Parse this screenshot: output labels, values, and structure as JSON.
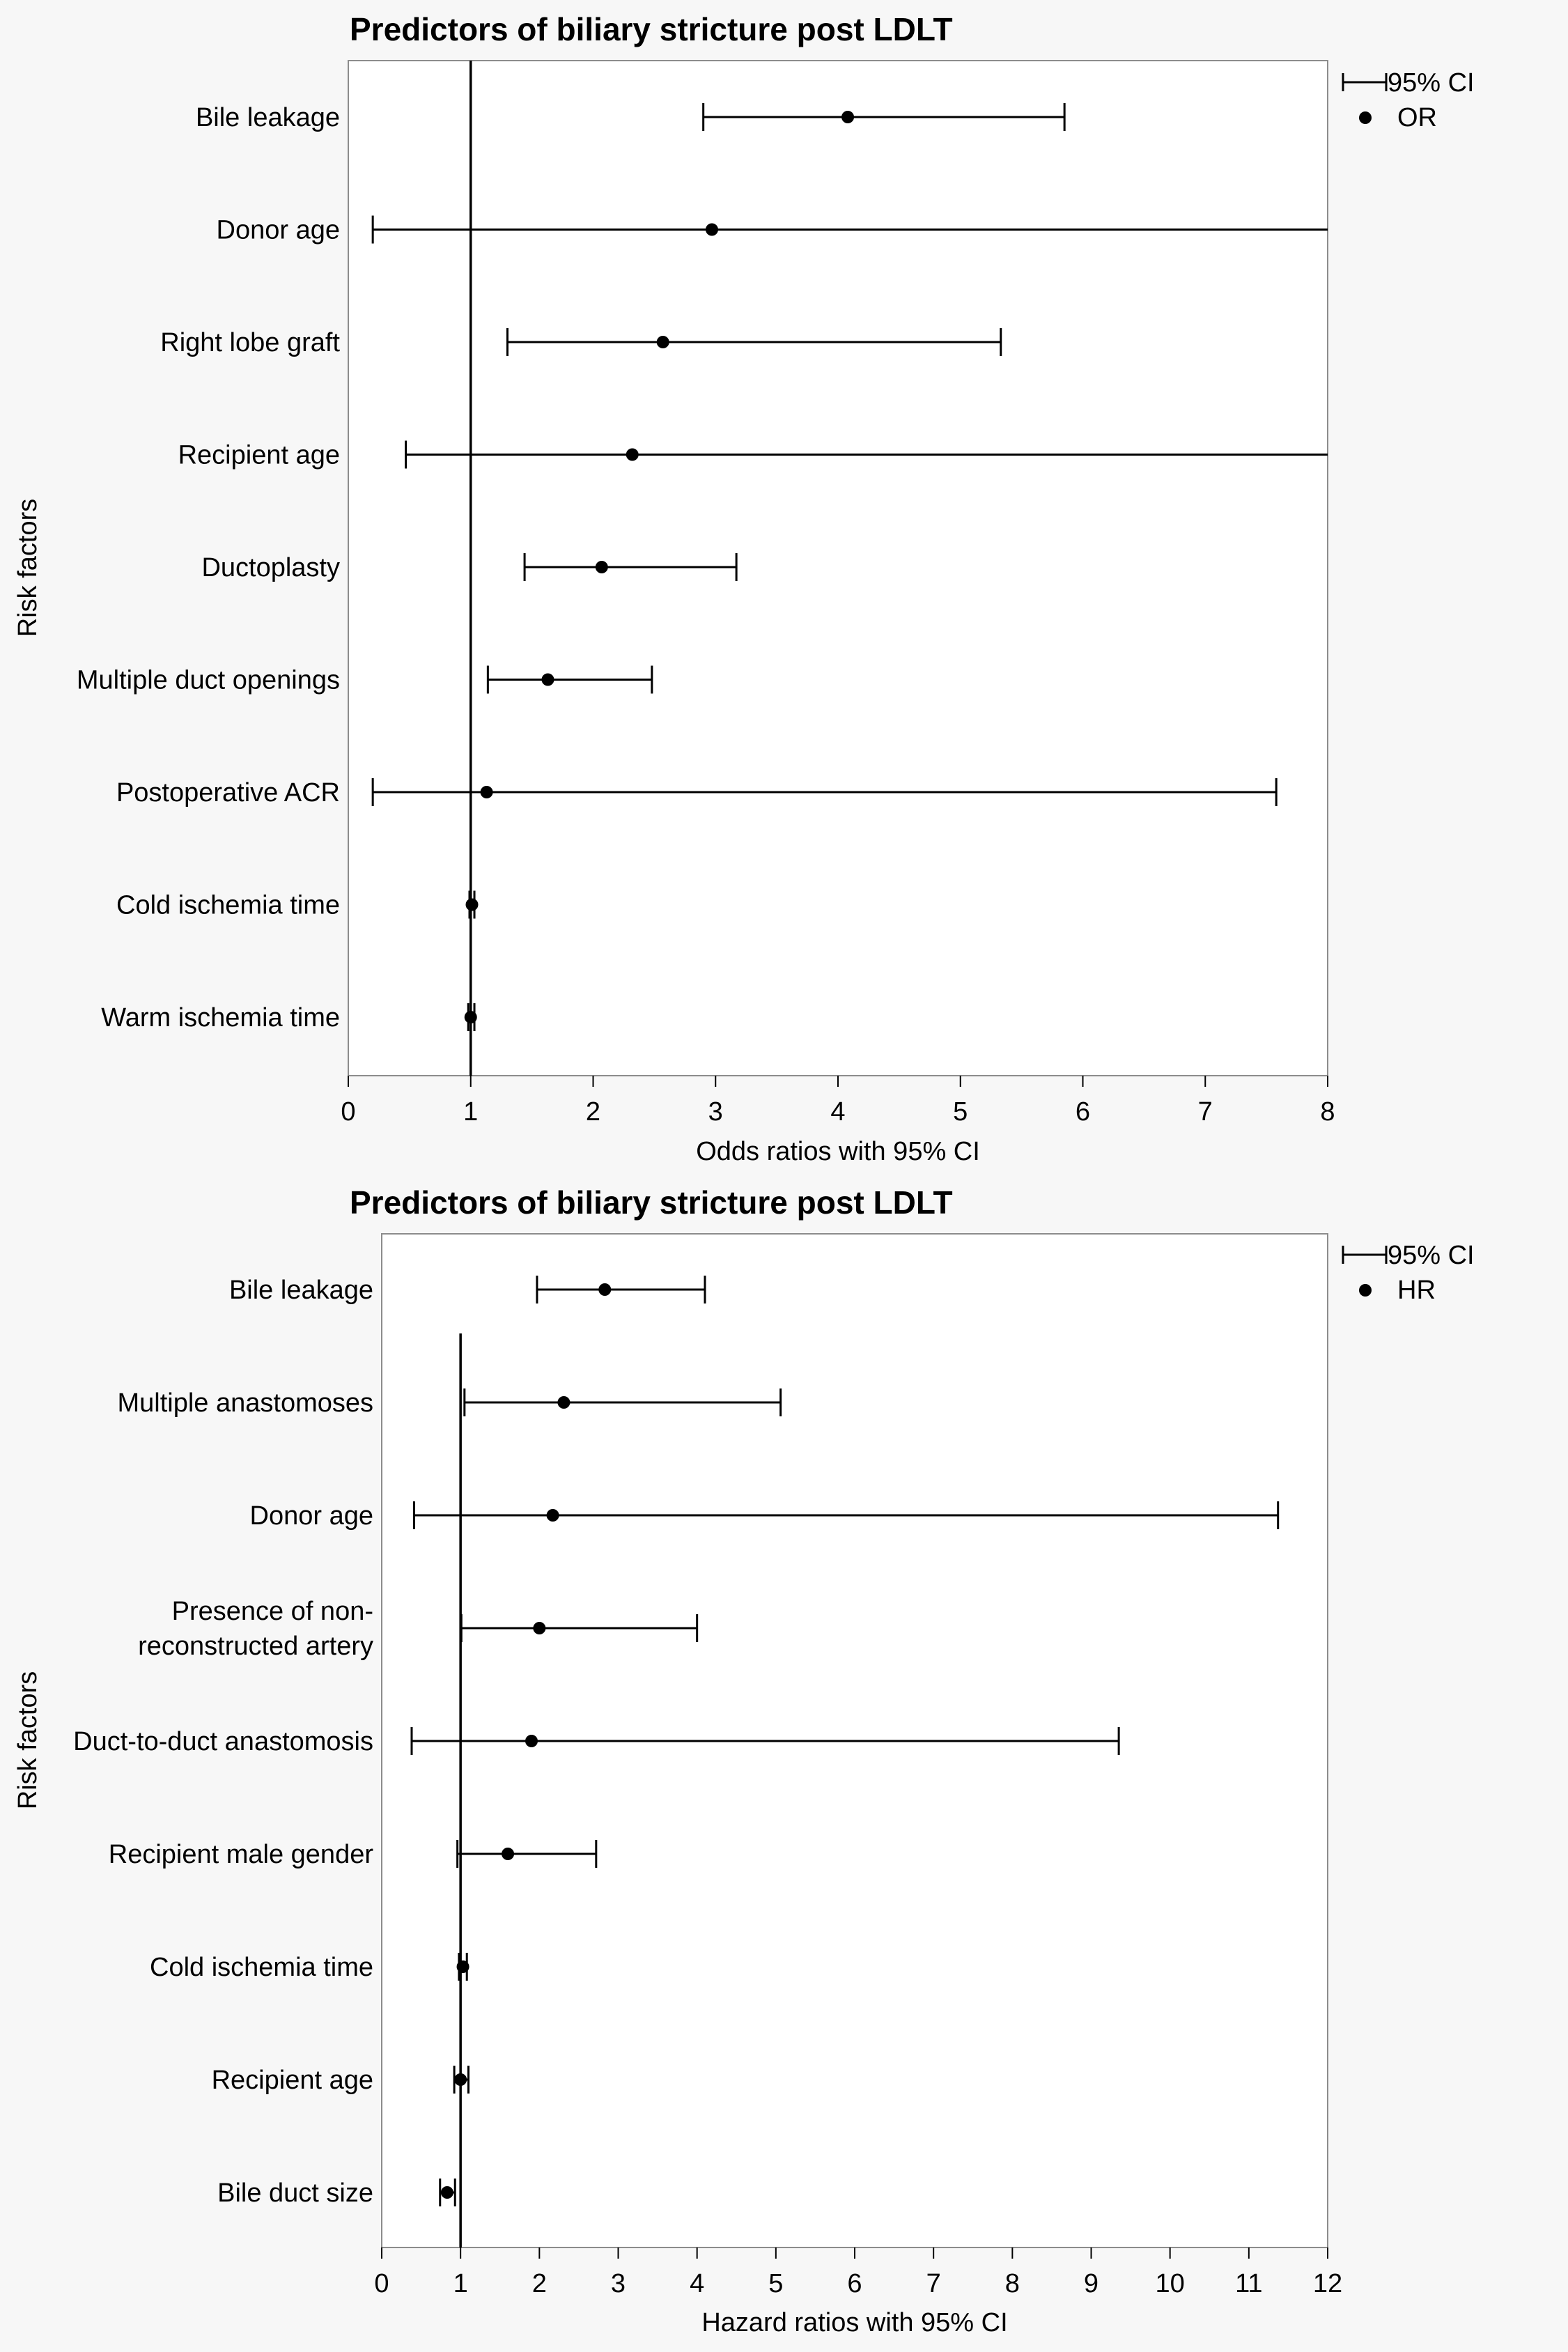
{
  "chart_data": [
    {
      "type": "forest",
      "title": "Predictors of biliary stricture post LDLT",
      "xlabel": "Odds ratios with 95% CI",
      "ylabel": "Risk factors",
      "xlim": [
        0,
        8
      ],
      "xticks": [
        0,
        1,
        2,
        3,
        4,
        5,
        6,
        7,
        8
      ],
      "reference_line": 1,
      "legend": {
        "position": "top-right",
        "ci_label": "95% CI",
        "point_label": "OR"
      },
      "rows": [
        {
          "label": [
            "Bile leakage"
          ],
          "estimate": 4.08,
          "lower": 2.9,
          "upper": 5.85
        },
        {
          "label": [
            "Donor age"
          ],
          "estimate": 2.97,
          "lower": 0.2,
          "upper": 8.0
        },
        {
          "label": [
            "Right lobe graft"
          ],
          "estimate": 2.57,
          "lower": 1.3,
          "upper": 5.33
        },
        {
          "label": [
            "Recipient age"
          ],
          "estimate": 2.32,
          "lower": 0.47,
          "upper": 8.0
        },
        {
          "label": [
            "Ductoplasty"
          ],
          "estimate": 2.07,
          "lower": 1.44,
          "upper": 3.17
        },
        {
          "label": [
            "Multiple duct openings"
          ],
          "estimate": 1.63,
          "lower": 1.14,
          "upper": 2.48
        },
        {
          "label": [
            "Postoperative ACR"
          ],
          "estimate": 1.13,
          "lower": 0.2,
          "upper": 7.58
        },
        {
          "label": [
            "Cold ischemia time"
          ],
          "estimate": 1.01,
          "lower": 0.99,
          "upper": 1.03
        },
        {
          "label": [
            "Warm ischemia time"
          ],
          "estimate": 1.0,
          "lower": 0.98,
          "upper": 1.03
        }
      ]
    },
    {
      "type": "forest",
      "title": "Predictors of biliary stricture post LDLT",
      "xlabel": "Hazard ratios with 95% CI",
      "ylabel": "Risk factors",
      "xlim": [
        0,
        12
      ],
      "xticks": [
        0,
        1,
        2,
        3,
        4,
        5,
        6,
        7,
        8,
        9,
        10,
        11,
        12
      ],
      "reference_line": 1,
      "legend": {
        "position": "top-right",
        "ci_label": "95% CI",
        "point_label": "HR"
      },
      "rows": [
        {
          "label": [
            "Bile leakage"
          ],
          "estimate": 2.83,
          "lower": 1.97,
          "upper": 4.1
        },
        {
          "label": [
            "Multiple anastomoses"
          ],
          "estimate": 2.31,
          "lower": 1.05,
          "upper": 5.06
        },
        {
          "label": [
            "Donor age"
          ],
          "estimate": 2.17,
          "lower": 0.41,
          "upper": 11.37
        },
        {
          "label": [
            "Presence of non-",
            "reconstructed artery"
          ],
          "estimate": 2.0,
          "lower": 1.01,
          "upper": 4.0
        },
        {
          "label": [
            "Duct-to-duct anastomosis"
          ],
          "estimate": 1.9,
          "lower": 0.38,
          "upper": 9.35
        },
        {
          "label": [
            "Recipient male gender"
          ],
          "estimate": 1.6,
          "lower": 0.96,
          "upper": 2.72
        },
        {
          "label": [
            "Cold ischemia time"
          ],
          "estimate": 1.03,
          "lower": 0.98,
          "upper": 1.08
        },
        {
          "label": [
            "Recipient age"
          ],
          "estimate": 1.0,
          "lower": 0.92,
          "upper": 1.1
        },
        {
          "label": [
            "Bile duct size"
          ],
          "estimate": 0.83,
          "lower": 0.74,
          "upper": 0.93
        }
      ]
    }
  ]
}
